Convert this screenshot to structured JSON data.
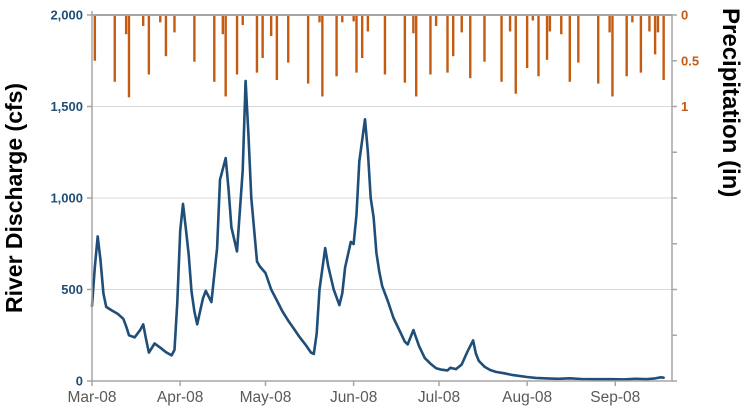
{
  "chart_data": {
    "type": "line",
    "subtype": "dual-axis hydrograph: line (river discharge, left axis) + hanging bars (precipitation, inverted right axis)",
    "title": "",
    "grid": "horizontal gridlines at 500, 1000, 1500; no vertical gridlines",
    "legend_position": "none",
    "colors": {
      "discharge": "#1F4E79",
      "precipitation": "#C55A11",
      "x_tick_text": "#595959",
      "axis_line": "#A6A6A6",
      "gridline": "#D9D9D9"
    },
    "left_axis": {
      "label": "River Discharge (cfs)",
      "min": 0,
      "max": 2000,
      "tick_step": 500,
      "tick_labels": [
        "0",
        "500",
        "1,000",
        "1,500",
        "2,000"
      ]
    },
    "right_axis": {
      "label": "Precipitation (in)",
      "min": 0,
      "max": 4,
      "tick_step": 0.5,
      "inverted": true,
      "visible_tick_labels": [
        "0",
        "0.5",
        "1"
      ]
    },
    "x_axis": {
      "start": "2008-03-01",
      "end": "2008-09-21",
      "tick_labels": [
        "Mar-08",
        "Apr-08",
        "May-08",
        "Jun-08",
        "Jul-08",
        "Aug-08",
        "Sep-08"
      ],
      "tick_dates": [
        "2008-03-01",
        "2008-04-01",
        "2008-05-01",
        "2008-06-01",
        "2008-07-01",
        "2008-08-01",
        "2008-09-01"
      ]
    },
    "series": [
      {
        "name": "River Discharge",
        "type": "line",
        "axis": "left",
        "units": "cfs",
        "points": [
          [
            "2008-03-01",
            410
          ],
          [
            "2008-03-02",
            620
          ],
          [
            "2008-03-03",
            790
          ],
          [
            "2008-03-04",
            660
          ],
          [
            "2008-03-05",
            480
          ],
          [
            "2008-03-06",
            405
          ],
          [
            "2008-03-08",
            385
          ],
          [
            "2008-03-10",
            368
          ],
          [
            "2008-03-12",
            340
          ],
          [
            "2008-03-13",
            300
          ],
          [
            "2008-03-14",
            250
          ],
          [
            "2008-03-16",
            238
          ],
          [
            "2008-03-18",
            280
          ],
          [
            "2008-03-19",
            310
          ],
          [
            "2008-03-20",
            230
          ],
          [
            "2008-03-21",
            155
          ],
          [
            "2008-03-23",
            205
          ],
          [
            "2008-03-25",
            182
          ],
          [
            "2008-03-27",
            158
          ],
          [
            "2008-03-29",
            140
          ],
          [
            "2008-03-30",
            170
          ],
          [
            "2008-03-31",
            430
          ],
          [
            "2008-04-01",
            820
          ],
          [
            "2008-04-02",
            968
          ],
          [
            "2008-04-03",
            830
          ],
          [
            "2008-04-04",
            690
          ],
          [
            "2008-04-05",
            490
          ],
          [
            "2008-04-06",
            380
          ],
          [
            "2008-04-07",
            310
          ],
          [
            "2008-04-09",
            450
          ],
          [
            "2008-04-10",
            493
          ],
          [
            "2008-04-12",
            431
          ],
          [
            "2008-04-14",
            726
          ],
          [
            "2008-04-15",
            1100
          ],
          [
            "2008-04-17",
            1218
          ],
          [
            "2008-04-18",
            1050
          ],
          [
            "2008-04-19",
            840
          ],
          [
            "2008-04-21",
            708
          ],
          [
            "2008-04-23",
            1150
          ],
          [
            "2008-04-24",
            1640
          ],
          [
            "2008-04-25",
            1350
          ],
          [
            "2008-04-26",
            1000
          ],
          [
            "2008-04-28",
            653
          ],
          [
            "2008-04-29",
            626
          ],
          [
            "2008-05-01",
            590
          ],
          [
            "2008-05-03",
            500
          ],
          [
            "2008-05-05",
            440
          ],
          [
            "2008-05-07",
            380
          ],
          [
            "2008-05-09",
            330
          ],
          [
            "2008-05-11",
            285
          ],
          [
            "2008-05-13",
            240
          ],
          [
            "2008-05-15",
            200
          ],
          [
            "2008-05-17",
            155
          ],
          [
            "2008-05-18",
            148
          ],
          [
            "2008-05-19",
            260
          ],
          [
            "2008-05-20",
            500
          ],
          [
            "2008-05-22",
            726
          ],
          [
            "2008-05-23",
            630
          ],
          [
            "2008-05-25",
            500
          ],
          [
            "2008-05-27",
            415
          ],
          [
            "2008-05-28",
            480
          ],
          [
            "2008-05-29",
            620
          ],
          [
            "2008-05-31",
            760
          ],
          [
            "2008-06-01",
            748
          ],
          [
            "2008-06-02",
            910
          ],
          [
            "2008-06-03",
            1200
          ],
          [
            "2008-06-05",
            1430
          ],
          [
            "2008-06-06",
            1250
          ],
          [
            "2008-06-07",
            1000
          ],
          [
            "2008-06-08",
            895
          ],
          [
            "2008-06-09",
            700
          ],
          [
            "2008-06-10",
            600
          ],
          [
            "2008-06-11",
            520
          ],
          [
            "2008-06-13",
            437
          ],
          [
            "2008-06-15",
            344
          ],
          [
            "2008-06-17",
            280
          ],
          [
            "2008-06-19",
            215
          ],
          [
            "2008-06-20",
            200
          ],
          [
            "2008-06-22",
            278
          ],
          [
            "2008-06-24",
            190
          ],
          [
            "2008-06-26",
            125
          ],
          [
            "2008-06-28",
            95
          ],
          [
            "2008-06-30",
            70
          ],
          [
            "2008-07-02",
            62
          ],
          [
            "2008-07-04",
            58
          ],
          [
            "2008-07-05",
            72
          ],
          [
            "2008-07-07",
            65
          ],
          [
            "2008-07-09",
            90
          ],
          [
            "2008-07-11",
            160
          ],
          [
            "2008-07-13",
            222
          ],
          [
            "2008-07-14",
            150
          ],
          [
            "2008-07-15",
            110
          ],
          [
            "2008-07-17",
            78
          ],
          [
            "2008-07-19",
            60
          ],
          [
            "2008-07-21",
            50
          ],
          [
            "2008-07-24",
            42
          ],
          [
            "2008-07-27",
            32
          ],
          [
            "2008-08-01",
            22
          ],
          [
            "2008-08-04",
            17
          ],
          [
            "2008-08-08",
            14
          ],
          [
            "2008-08-12",
            12
          ],
          [
            "2008-08-16",
            15
          ],
          [
            "2008-08-20",
            11
          ],
          [
            "2008-08-25",
            10
          ],
          [
            "2008-08-31",
            10
          ],
          [
            "2008-09-04",
            9
          ],
          [
            "2008-09-08",
            12
          ],
          [
            "2008-09-12",
            10
          ],
          [
            "2008-09-15",
            14
          ],
          [
            "2008-09-17",
            20
          ],
          [
            "2008-09-18",
            18
          ]
        ]
      },
      {
        "name": "Precipitation",
        "type": "bar",
        "axis": "right",
        "units": "in",
        "points": [
          [
            "2008-03-02",
            0.5
          ],
          [
            "2008-03-09",
            0.73
          ],
          [
            "2008-03-13",
            0.21
          ],
          [
            "2008-03-14",
            0.9
          ],
          [
            "2008-03-19",
            0.12
          ],
          [
            "2008-03-21",
            0.65
          ],
          [
            "2008-03-25",
            0.08
          ],
          [
            "2008-03-27",
            0.45
          ],
          [
            "2008-03-30",
            0.19
          ],
          [
            "2008-04-06",
            0.51
          ],
          [
            "2008-04-13",
            0.73
          ],
          [
            "2008-04-16",
            0.21
          ],
          [
            "2008-04-17",
            0.89
          ],
          [
            "2008-04-21",
            0.65
          ],
          [
            "2008-04-23",
            0.11
          ],
          [
            "2008-04-28",
            0.63
          ],
          [
            "2008-04-30",
            0.47
          ],
          [
            "2008-05-03",
            0.23
          ],
          [
            "2008-05-05",
            0.71
          ],
          [
            "2008-05-09",
            0.52
          ],
          [
            "2008-05-16",
            0.75
          ],
          [
            "2008-05-20",
            0.08
          ],
          [
            "2008-05-21",
            0.89
          ],
          [
            "2008-05-26",
            0.67
          ],
          [
            "2008-05-28",
            0.08
          ],
          [
            "2008-06-01",
            0.07
          ],
          [
            "2008-06-02",
            0.63
          ],
          [
            "2008-06-04",
            0.47
          ],
          [
            "2008-06-06",
            0.18
          ],
          [
            "2008-06-12",
            0.65
          ],
          [
            "2008-06-19",
            0.74
          ],
          [
            "2008-06-22",
            0.2
          ],
          [
            "2008-06-23",
            0.89
          ],
          [
            "2008-06-28",
            0.65
          ],
          [
            "2008-06-30",
            0.12
          ],
          [
            "2008-07-04",
            0.63
          ],
          [
            "2008-07-06",
            0.45
          ],
          [
            "2008-07-09",
            0.19
          ],
          [
            "2008-07-12",
            0.69
          ],
          [
            "2008-07-17",
            0.51
          ],
          [
            "2008-07-23",
            0.73
          ],
          [
            "2008-07-26",
            0.18
          ],
          [
            "2008-07-28",
            0.86
          ],
          [
            "2008-08-01",
            0.58
          ],
          [
            "2008-08-03",
            0.06
          ],
          [
            "2008-08-05",
            0.67
          ],
          [
            "2008-08-08",
            0.49
          ],
          [
            "2008-08-09",
            0.18
          ],
          [
            "2008-08-13",
            0.21
          ],
          [
            "2008-08-16",
            0.73
          ],
          [
            "2008-08-19",
            0.52
          ],
          [
            "2008-08-26",
            0.75
          ],
          [
            "2008-08-30",
            0.19
          ],
          [
            "2008-08-31",
            0.89
          ],
          [
            "2008-09-05",
            0.67
          ],
          [
            "2008-09-07",
            0.08
          ],
          [
            "2008-09-10",
            0.63
          ],
          [
            "2008-09-13",
            0.18
          ],
          [
            "2008-09-15",
            0.43
          ],
          [
            "2008-09-16",
            0.19
          ],
          [
            "2008-09-18",
            0.71
          ]
        ]
      }
    ]
  }
}
